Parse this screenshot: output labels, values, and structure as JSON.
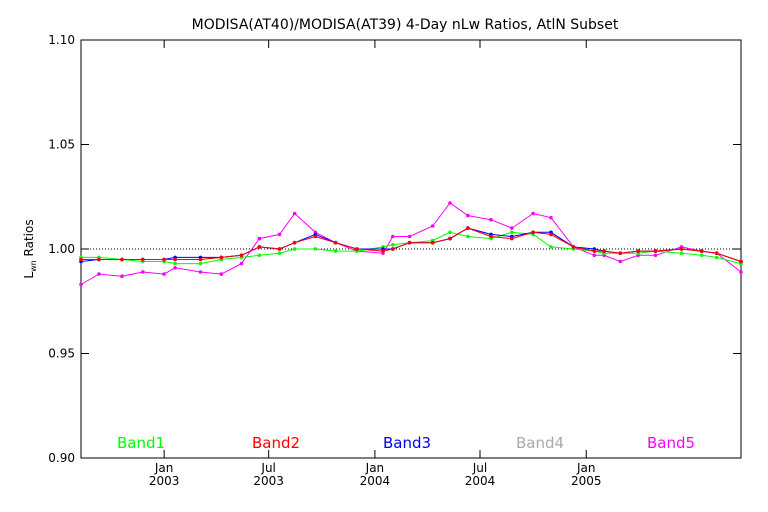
{
  "chart_data": {
    "type": "line",
    "title": "MODISA(AT40)/MODISA(AT39) 4-Day nLw Ratios, AtlN Subset",
    "ylabel": {
      "main": "L",
      "sub": "wn",
      "rest": " Ratios"
    },
    "xlabel": "",
    "ylim": [
      0.9,
      1.1
    ],
    "xlim": [
      "2002-08-10",
      "2005-09-26"
    ],
    "yticks": [
      "0.90",
      "0.95",
      "1.00",
      "1.05",
      "1.10"
    ],
    "xticks": [
      {
        "month": "Jan",
        "year": "2003",
        "date": "2003-01-01"
      },
      {
        "month": "Jul",
        "year": "2003",
        "date": "2003-07-01"
      },
      {
        "month": "Jan",
        "year": "2004",
        "date": "2004-01-01"
      },
      {
        "month": "Jul",
        "year": "2004",
        "date": "2004-07-01"
      },
      {
        "month": "Jan",
        "year": "2005",
        "date": "2005-01-01"
      }
    ],
    "reference_line": 1.0,
    "legend_placement": "bottom",
    "x": [
      "2002-08-10",
      "2002-09-10",
      "2002-10-20",
      "2002-11-25",
      "2003-01-01",
      "2003-01-20",
      "2003-03-05",
      "2003-04-10",
      "2003-05-15",
      "2003-06-15",
      "2003-07-20",
      "2003-08-15",
      "2003-09-20",
      "2003-10-25",
      "2003-12-01",
      "2004-01-15",
      "2004-02-01",
      "2004-03-01",
      "2004-04-10",
      "2004-05-10",
      "2004-06-10",
      "2004-07-20",
      "2004-08-25",
      "2004-10-01",
      "2004-11-01",
      "2004-12-10",
      "2005-01-15",
      "2005-02-01",
      "2005-03-01",
      "2005-04-01",
      "2005-05-01",
      "2005-06-15",
      "2005-07-20",
      "2005-08-15",
      "2005-09-26"
    ],
    "series": [
      {
        "name": "Band1",
        "color": "#00ff00",
        "values": [
          0.996,
          0.996,
          0.995,
          0.994,
          0.994,
          0.993,
          0.993,
          0.995,
          0.996,
          0.997,
          0.998,
          1.0,
          1.0,
          0.999,
          0.999,
          1.001,
          1.002,
          1.003,
          1.004,
          1.008,
          1.006,
          1.005,
          1.008,
          1.007,
          1.001,
          1.0,
          0.999,
          0.998,
          0.998,
          0.998,
          0.999,
          0.998,
          0.997,
          0.996,
          0.993
        ]
      },
      {
        "name": "Band2",
        "color": "#ff0000",
        "values": [
          0.995,
          0.995,
          0.995,
          0.995,
          0.995,
          0.995,
          0.995,
          0.996,
          0.997,
          1.001,
          1.0,
          1.003,
          1.006,
          1.003,
          1.0,
          0.999,
          1.0,
          1.003,
          1.003,
          1.005,
          1.01,
          1.006,
          1.005,
          1.008,
          1.007,
          1.001,
          0.999,
          0.999,
          0.998,
          0.999,
          0.999,
          1.0,
          0.999,
          0.998,
          0.994
        ]
      },
      {
        "name": "Band3",
        "color": "#0000ff",
        "values": [
          0.994,
          0.995,
          0.995,
          0.995,
          0.995,
          0.996,
          0.996,
          0.996,
          0.997,
          1.001,
          1.0,
          1.003,
          1.007,
          1.003,
          1.0,
          1.0,
          1.0,
          1.003,
          1.003,
          1.005,
          1.01,
          1.007,
          1.006,
          1.008,
          1.008,
          1.001,
          1.0,
          0.999,
          0.998,
          0.999,
          0.999,
          1.0,
          0.999,
          0.998,
          0.994
        ]
      },
      {
        "name": "Band4",
        "color": "#aaaaaa",
        "values": [
          0.995,
          0.995,
          0.995,
          0.995,
          0.995,
          0.995,
          0.995,
          0.996,
          0.997,
          1.001,
          1.0,
          1.003,
          1.006,
          1.003,
          1.0,
          0.999,
          1.0,
          1.003,
          1.003,
          1.005,
          1.01,
          1.006,
          1.005,
          1.008,
          1.007,
          1.001,
          0.999,
          0.999,
          0.998,
          0.999,
          0.999,
          1.0,
          0.999,
          0.998,
          0.994
        ]
      },
      {
        "name": "Band5",
        "color": "#ff00ff",
        "values": [
          0.983,
          0.988,
          0.987,
          0.989,
          0.988,
          0.991,
          0.989,
          0.988,
          0.993,
          1.005,
          1.007,
          1.017,
          1.008,
          1.003,
          0.999,
          0.998,
          1.006,
          1.006,
          1.011,
          1.022,
          1.016,
          1.014,
          1.01,
          1.017,
          1.015,
          1.001,
          0.997,
          0.997,
          0.994,
          0.997,
          0.997,
          1.001,
          0.999,
          0.998,
          0.989
        ]
      }
    ],
    "draw_order": [
      "Band5",
      "Band4",
      "Band1",
      "Band3",
      "Band2"
    ]
  }
}
